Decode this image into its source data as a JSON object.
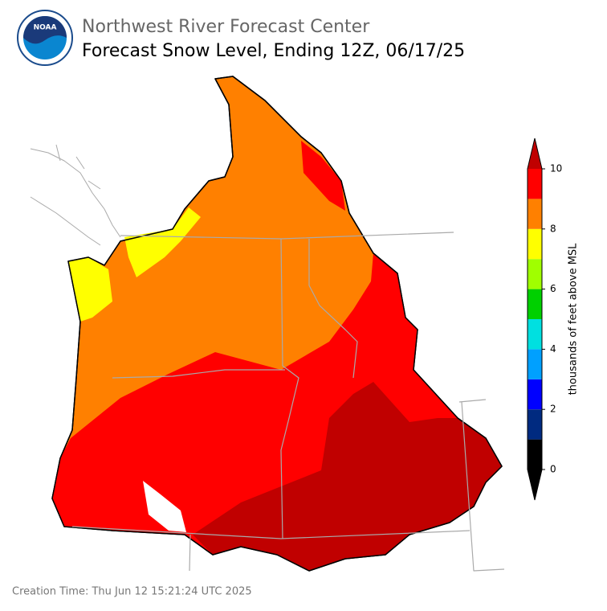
{
  "header": {
    "agency": "Northwest River Forecast Center",
    "title": "Forecast Snow Level, Ending 12Z, 06/17/25",
    "logo_text": "NOAA"
  },
  "colorbar": {
    "label": "thousands of feet above MSL",
    "boundaries": [
      0,
      1,
      2,
      3,
      4,
      5,
      6,
      7,
      8,
      9,
      10
    ],
    "colors": [
      "#000000",
      "#002a80",
      "#0000ff",
      "#00a0ff",
      "#00e0e0",
      "#00d000",
      "#a0ff00",
      "#ffff00",
      "#ff8000",
      "#ff0000"
    ],
    "under_color": "#000000",
    "over_color": "#c00000",
    "ticks": [
      0,
      2,
      4,
      6,
      8,
      10
    ]
  },
  "footer": {
    "creation_time": "Creation Time: Thu Jun 12 15:21:24 UTC 2025"
  }
}
